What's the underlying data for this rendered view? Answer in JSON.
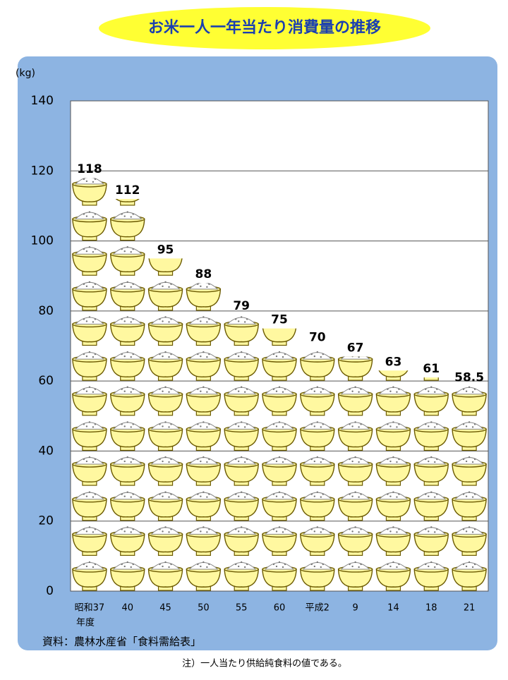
{
  "chart_data": {
    "type": "pictograph-bar",
    "title": "お米一人一年当たり消費量の推移",
    "y_unit": "(kg)",
    "categories": [
      "昭和37",
      "40",
      "45",
      "50",
      "55",
      "60",
      "平成2",
      "9",
      "14",
      "18",
      "21"
    ],
    "x_label_suffix": "年度",
    "values": [
      118,
      112,
      95,
      88,
      79,
      75,
      70,
      67,
      63,
      61,
      58.5
    ],
    "ylim": [
      0,
      140
    ],
    "yticks": [
      0,
      20,
      40,
      60,
      80,
      100,
      120,
      140
    ],
    "grid": true,
    "source": "資料：農林水産省「食料需給表」",
    "note": "注）一人当たり供給純食料の値である。"
  }
}
